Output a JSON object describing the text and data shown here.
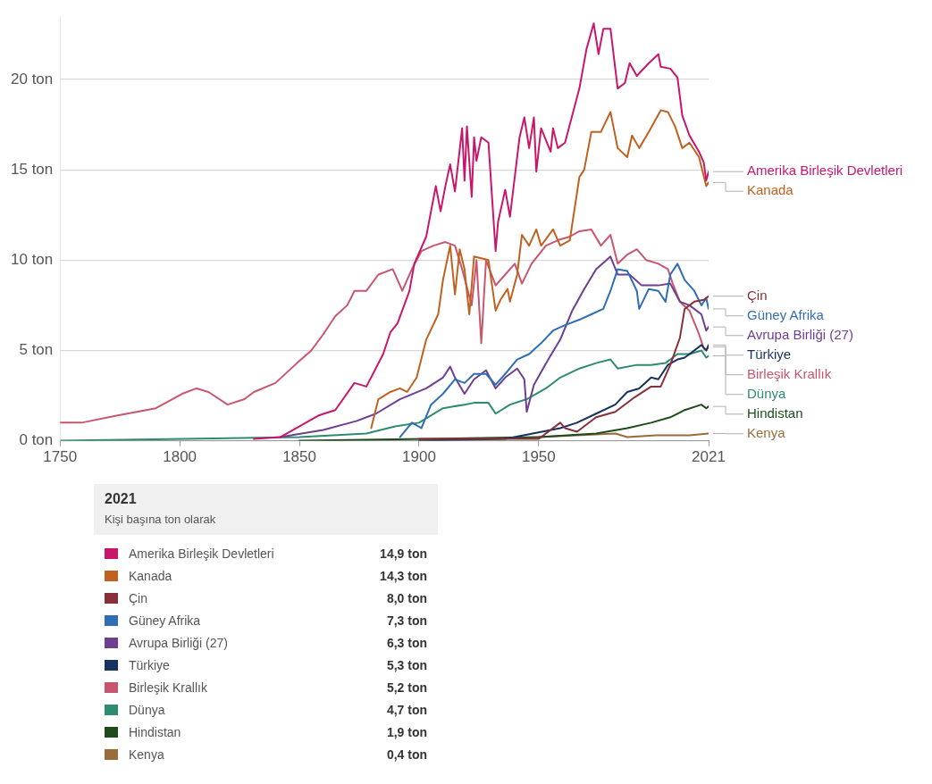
{
  "chart_data": {
    "type": "line",
    "legend_title": "2021",
    "subtitle": "Kişi başına ton olarak",
    "xlim": [
      1750,
      2021
    ],
    "xticks": [
      1750,
      1800,
      1850,
      1900,
      1950,
      2021
    ],
    "ylim": [
      0,
      23.5
    ],
    "yticks": [
      {
        "value": 0,
        "label": "0 ton"
      },
      {
        "value": 5,
        "label": "5 ton"
      },
      {
        "value": 10,
        "label": "10 ton"
      },
      {
        "value": 15,
        "label": "15 ton"
      },
      {
        "value": 20,
        "label": "20 ton"
      }
    ],
    "grid": "y",
    "legend": "bottom",
    "annotations": [
      "14,9 ton",
      "14,3 ton",
      "8,0 ton",
      "7,3 ton",
      "6,3 ton",
      "5,3 ton",
      "5,2 ton",
      "4,7 ton",
      "1,9 ton",
      "0,4 ton"
    ],
    "marker": "none",
    "line_style": "solid",
    "series": [
      {
        "name": "Amerika Birleşik Devletleri",
        "color": "#c8176a",
        "x": [
          1831,
          1842,
          1858,
          1865,
          1873,
          1878,
          1885,
          1888,
          1891,
          1896,
          1898,
          1903,
          1907,
          1909,
          1911,
          1913,
          1915,
          1918,
          1919,
          1920,
          1922,
          1923,
          1924,
          1926,
          1929,
          1932,
          1933,
          1936,
          1938,
          1942,
          1944,
          1946,
          1948,
          1949,
          1951,
          1955,
          1956,
          1958,
          1961,
          1967,
          1970,
          1973,
          1975,
          1977,
          1980,
          1983,
          1986,
          1988,
          1991,
          1996,
          2000,
          2001,
          2005,
          2008,
          2010,
          2013,
          2017,
          2019,
          2020,
          2021
        ],
        "values": [
          0.1,
          0.2,
          1.4,
          1.7,
          3.2,
          3.0,
          4.8,
          6.0,
          6.5,
          8.3,
          9.8,
          11.3,
          14.1,
          12.7,
          14.1,
          15.3,
          13.8,
          17.3,
          14.4,
          17.4,
          13.5,
          16.8,
          15.5,
          16.8,
          16.5,
          10.5,
          12.1,
          13.9,
          12.4,
          16.8,
          17.9,
          16.2,
          17.9,
          14.9,
          17.3,
          16.0,
          17.3,
          16.2,
          16.5,
          19.5,
          21.7,
          23.1,
          21.4,
          22.8,
          22.8,
          19.5,
          19.8,
          20.9,
          20.2,
          20.9,
          21.4,
          20.7,
          20.6,
          20.1,
          18.0,
          16.9,
          16.0,
          15.4,
          14.4,
          14.9
        ]
      },
      {
        "name": "Kanada",
        "color": "#c0611f",
        "x": [
          1880,
          1883,
          1888,
          1892,
          1895,
          1899,
          1903,
          1908,
          1910,
          1913,
          1915,
          1917,
          1919,
          1921,
          1923,
          1929,
          1932,
          1934,
          1937,
          1938,
          1941,
          1943,
          1946,
          1949,
          1951,
          1956,
          1959,
          1963,
          1967,
          1969,
          1972,
          1976,
          1980,
          1983,
          1987,
          1989,
          1992,
          1996,
          2001,
          2004,
          2007,
          2010,
          2013,
          2017,
          2020,
          2021
        ],
        "values": [
          0.7,
          2.3,
          2.7,
          2.9,
          2.7,
          3.5,
          5.6,
          7.0,
          8.9,
          10.8,
          8.1,
          10.6,
          9.5,
          7.0,
          10.2,
          10.0,
          7.2,
          7.8,
          8.4,
          7.7,
          9.2,
          11.4,
          10.8,
          11.7,
          10.8,
          11.7,
          10.8,
          11.1,
          14.6,
          15.0,
          17.1,
          17.1,
          18.2,
          16.2,
          15.7,
          16.9,
          16.2,
          17.1,
          18.3,
          18.2,
          17.4,
          16.2,
          16.5,
          15.7,
          14.1,
          14.3
        ]
      },
      {
        "name": "Çin",
        "color": "#883039",
        "x": [
          1900,
          1950,
          1959,
          1961,
          1966,
          1974,
          1982,
          1990,
          1997,
          2001,
          2005,
          2009,
          2011,
          2015,
          2019,
          2021
        ],
        "values": [
          0.1,
          0.1,
          1.0,
          0.7,
          0.5,
          1.3,
          1.6,
          2.4,
          3.0,
          3.0,
          4.2,
          5.7,
          7.3,
          7.7,
          7.8,
          8.0
        ]
      },
      {
        "name": "Güney Afrika",
        "color": "#2f6db5",
        "x": [
          1892,
          1897,
          1901,
          1905,
          1910,
          1915,
          1919,
          1923,
          1928,
          1932,
          1936,
          1941,
          1946,
          1951,
          1956,
          1961,
          1967,
          1972,
          1977,
          1980,
          1983,
          1987,
          1991,
          1992,
          1996,
          2000,
          2003,
          2005,
          2008,
          2011,
          2015,
          2018,
          2020,
          2021
        ],
        "values": [
          0.2,
          1.0,
          0.7,
          2.0,
          2.6,
          3.4,
          3.2,
          3.7,
          3.7,
          3.1,
          3.7,
          4.5,
          4.8,
          5.4,
          6.1,
          6.4,
          6.7,
          7.0,
          7.3,
          8.3,
          9.5,
          9.4,
          8.3,
          7.3,
          8.4,
          8.3,
          7.7,
          9.2,
          9.8,
          8.9,
          8.3,
          7.5,
          7.9,
          7.3
        ]
      },
      {
        "name": "Avrupa Birliği (27)",
        "color": "#6d3e91",
        "x": [
          1842,
          1860,
          1874,
          1882,
          1892,
          1903,
          1910,
          1913,
          1915,
          1919,
          1923,
          1928,
          1932,
          1936,
          1941,
          1944,
          1945,
          1948,
          1954,
          1959,
          1964,
          1969,
          1974,
          1980,
          1983,
          1988,
          1993,
          2000,
          2005,
          2009,
          2013,
          2018,
          2020,
          2021
        ],
        "values": [
          0.2,
          0.6,
          1.1,
          1.5,
          2.3,
          2.9,
          3.5,
          4.1,
          3.5,
          2.6,
          3.4,
          3.9,
          2.9,
          3.5,
          4.0,
          3.4,
          1.6,
          3.1,
          4.5,
          5.6,
          7.2,
          8.4,
          9.5,
          10.2,
          9.2,
          9.2,
          8.6,
          8.6,
          8.7,
          7.7,
          7.5,
          7.0,
          6.1,
          6.3
        ]
      },
      {
        "name": "Türkiye",
        "color": "#18325e",
        "x": [
          1900,
          1936,
          1959,
          1966,
          1974,
          1982,
          1987,
          1992,
          1997,
          2000,
          2004,
          2008,
          2011,
          2015,
          2018,
          2020,
          2021
        ],
        "values": [
          0,
          0.1,
          0.7,
          1.0,
          1.5,
          2.0,
          2.7,
          2.9,
          3.5,
          3.4,
          4.2,
          4.5,
          4.6,
          5.0,
          5.3,
          5.0,
          5.3
        ]
      },
      {
        "name": "Birleşik Krallık",
        "color": "#c8566f",
        "x": [
          1750,
          1759,
          1774,
          1790,
          1801,
          1807,
          1812,
          1820,
          1827,
          1831,
          1840,
          1849,
          1855,
          1860,
          1865,
          1870,
          1873,
          1878,
          1883,
          1889,
          1893,
          1897,
          1901,
          1906,
          1911,
          1915,
          1918,
          1922,
          1924,
          1926,
          1928,
          1932,
          1936,
          1940,
          1943,
          1947,
          1953,
          1958,
          1963,
          1967,
          1972,
          1976,
          1980,
          1983,
          1987,
          1991,
          1995,
          2000,
          2004,
          2006,
          2009,
          2013,
          2017,
          2019,
          2020,
          2021
        ],
        "values": [
          1.0,
          1.0,
          1.4,
          1.8,
          2.6,
          2.9,
          2.7,
          2.0,
          2.3,
          2.7,
          3.2,
          4.3,
          5.0,
          5.9,
          6.9,
          7.5,
          8.3,
          8.3,
          9.2,
          9.5,
          8.3,
          9.5,
          10.5,
          10.8,
          11.0,
          10.8,
          9.5,
          7.5,
          10.0,
          5.4,
          10.0,
          8.6,
          9.2,
          9.8,
          8.7,
          9.8,
          10.8,
          11.1,
          11.3,
          11.6,
          11.7,
          10.8,
          11.4,
          9.8,
          10.3,
          10.6,
          10.0,
          9.8,
          9.5,
          8.7,
          7.7,
          7.2,
          5.9,
          5.1,
          5.0,
          5.2
        ]
      },
      {
        "name": "Dünya",
        "color": "#2e8b6f",
        "x": [
          1750,
          1850,
          1878,
          1890,
          1900,
          1910,
          1919,
          1923,
          1929,
          1932,
          1938,
          1945,
          1953,
          1959,
          1967,
          1974,
          1980,
          1983,
          1991,
          1997,
          2003,
          2008,
          2013,
          2018,
          2020,
          2021
        ],
        "values": [
          0,
          0.2,
          0.4,
          0.8,
          1.0,
          1.8,
          2.0,
          2.1,
          2.1,
          1.5,
          2.0,
          2.3,
          2.9,
          3.5,
          4.0,
          4.3,
          4.5,
          4.0,
          4.2,
          4.2,
          4.3,
          4.8,
          4.8,
          5.0,
          4.6,
          4.7
        ]
      },
      {
        "name": "Hindistan",
        "color": "#1f4b1c",
        "x": [
          1850,
          1950,
          1974,
          1987,
          1997,
          2005,
          2011,
          2018,
          2020,
          2021
        ],
        "values": [
          0,
          0.2,
          0.4,
          0.7,
          1.0,
          1.3,
          1.7,
          2.0,
          1.8,
          1.9
        ]
      },
      {
        "name": "Kenya",
        "color": "#9a6c3c",
        "x": [
          1900,
          1950,
          1982,
          1987,
          1999,
          2013,
          2021
        ],
        "values": [
          0,
          0.2,
          0.4,
          0.2,
          0.3,
          0.3,
          0.4
        ]
      }
    ]
  }
}
